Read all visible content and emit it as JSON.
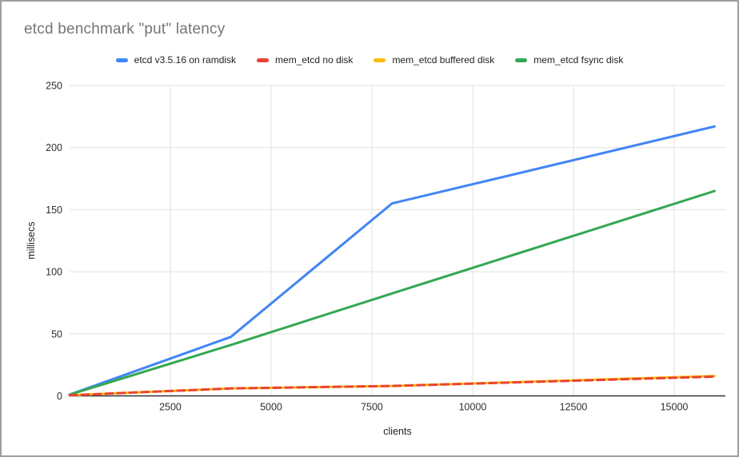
{
  "window": {
    "background": "#ffffff",
    "border_color": "#9e9e9e"
  },
  "chart_data": {
    "type": "line",
    "title": "etcd benchmark \"put\" latency",
    "title_color": "#757575",
    "xlabel": "clients",
    "ylabel": "millisecs",
    "x": [
      1,
      4000,
      8000,
      16000
    ],
    "series": [
      {
        "name": "etcd v3.5.16 on ramdisk",
        "color": "#4285f4",
        "style": "solid",
        "values": [
          1,
          47.5,
          155,
          217
        ]
      },
      {
        "name": "mem_etcd no disk",
        "color": "#ea4335",
        "style": "dashed",
        "values": [
          0.5,
          6,
          8,
          15.5
        ]
      },
      {
        "name": "mem_etcd buffered disk",
        "color": "#fbbc04",
        "style": "solid",
        "values": [
          0.5,
          6,
          8,
          16
        ]
      },
      {
        "name": "mem_etcd fsync disk",
        "color": "#34a853",
        "style": "solid",
        "values": [
          1,
          41,
          82.5,
          165
        ]
      }
    ],
    "xticks": [
      2500,
      5000,
      7500,
      10000,
      12500,
      15000
    ],
    "yticks": [
      0,
      50,
      100,
      150,
      200,
      250
    ],
    "xlim": [
      0,
      16270
    ],
    "ylim": [
      0,
      250
    ],
    "grid": true,
    "legend_position": "top",
    "gridline_color": "#e0e0e0",
    "axis_line_color": "#333333",
    "tick_label_color": "#2e2e2e"
  }
}
